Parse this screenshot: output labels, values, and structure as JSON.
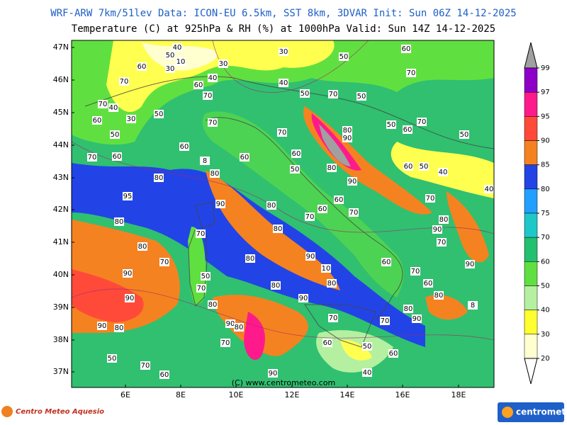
{
  "header": {
    "line1": "WRF-ARW 7km/51lev  Data: ICON-EU 6.5km, SST 8km, 3DVAR  Init: Sun 06Z 14-12-2025",
    "line2": "Temperature (C) at 925hPa & RH (%) at 1000hPa  Valid: Sun 14Z 14-12-2025"
  },
  "map": {
    "lat_labels": [
      "47N",
      "46N",
      "45N",
      "44N",
      "43N",
      "42N",
      "41N",
      "40N",
      "39N",
      "38N",
      "37N"
    ],
    "lon_labels": [
      "6E",
      "8E",
      "10E",
      "12E",
      "14E",
      "16E",
      "18E"
    ],
    "copyright": "(C) www.centrometeo.com",
    "contour_labels": [
      "50",
      "40",
      "30",
      "10",
      "30",
      "50",
      "60",
      "70",
      "70",
      "60",
      "60",
      "40",
      "30",
      "40",
      "50",
      "70",
      "50",
      "70",
      "70",
      "40",
      "60",
      "30",
      "50",
      "50",
      "70",
      "70",
      "80",
      "90",
      "50",
      "60",
      "70",
      "50",
      "60",
      "70",
      "60",
      "8",
      "60",
      "60",
      "50",
      "80",
      "60",
      "50",
      "40",
      "40",
      "80",
      "80",
      "90",
      "95",
      "90",
      "80",
      "60",
      "60",
      "70",
      "70",
      "70",
      "80",
      "80",
      "80",
      "70",
      "90",
      "80",
      "70",
      "80",
      "90",
      "70",
      "60",
      "90",
      "10",
      "90",
      "50",
      "70",
      "80",
      "80",
      "60",
      "70",
      "90",
      "90",
      "80",
      "8",
      "80",
      "80",
      "70",
      "90",
      "70",
      "90",
      "80",
      "90",
      "80",
      "70",
      "60",
      "50",
      "60",
      "50",
      "70",
      "60",
      "90",
      "40"
    ]
  },
  "colorbar": {
    "ticks": [
      99,
      97,
      95,
      90,
      85,
      80,
      75,
      70,
      60,
      50,
      40,
      30,
      20
    ],
    "colors": [
      "#8e00c8",
      "#ff1a8c",
      "#ff4a3a",
      "#f58220",
      "#2244e6",
      "#22a0ff",
      "#1ec8c8",
      "#22c070",
      "#60e040",
      "#b4f0a0",
      "#ffff30",
      "#ffffd0"
    ],
    "top_color": "#a0a0a0",
    "bottom_color": "#ffffff"
  },
  "logos": {
    "left": "Centro Meteo Aquesio",
    "right": "centrometeo"
  }
}
